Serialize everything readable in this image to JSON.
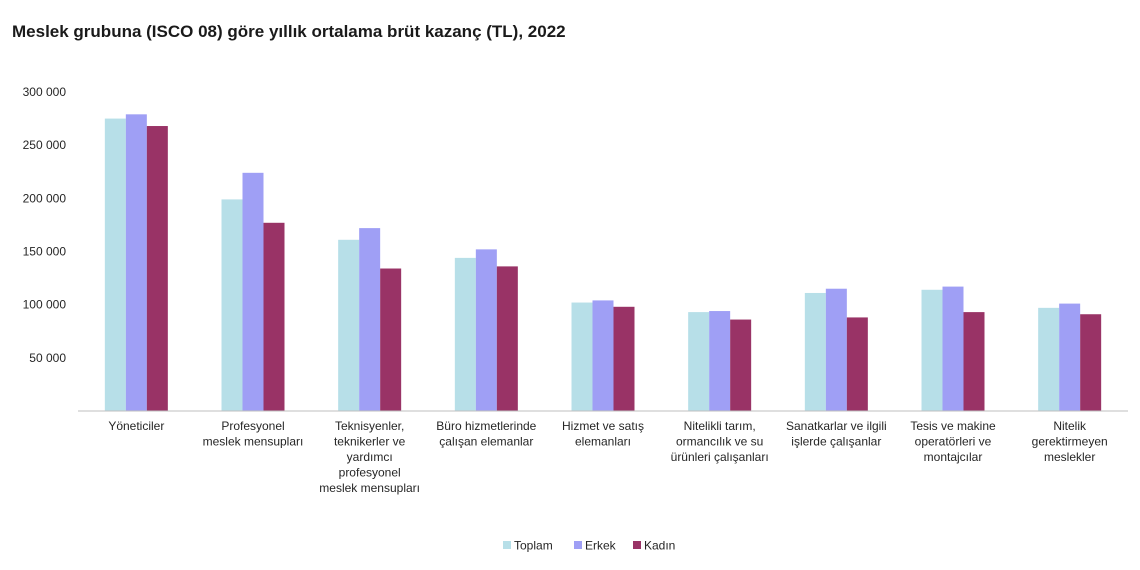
{
  "chart_data": {
    "type": "bar",
    "title": "Meslek grubuna (ISCO 08) göre yıllık ortalama brüt kazanç (TL), 2022",
    "xlabel": "",
    "ylabel": "",
    "ylim": [
      0,
      300000
    ],
    "yticks": [
      50000,
      100000,
      150000,
      200000,
      250000,
      300000
    ],
    "ytick_labels": [
      "50 000",
      "100 000",
      "150 000",
      "200 000",
      "250 000",
      "300 000"
    ],
    "grid": false,
    "legend_position": "bottom-center",
    "categories": [
      [
        "Yöneticiler"
      ],
      [
        "Profesyonel",
        "meslek mensupları"
      ],
      [
        "Teknisyenler,",
        "teknikerler ve",
        "yardımcı",
        "profesyonel",
        "meslek mensupları"
      ],
      [
        "Büro hizmetlerinde",
        "çalışan elemanlar"
      ],
      [
        "Hizmet ve satış",
        "elemanları"
      ],
      [
        "Nitelikli tarım,",
        "ormancılık ve su",
        "ürünleri çalışanları"
      ],
      [
        "Sanatkarlar ve ilgili",
        "işlerde çalışanlar"
      ],
      [
        "Tesis ve makine",
        "operatörleri ve",
        "montajcılar"
      ],
      [
        "Nitelik",
        "gerektirmeyen",
        "meslekler"
      ]
    ],
    "series": [
      {
        "name": "Toplam",
        "color": "#b7dfe8",
        "values": [
          275000,
          199000,
          161000,
          144000,
          102000,
          93000,
          111000,
          114000,
          97000
        ]
      },
      {
        "name": "Erkek",
        "color": "#9f9ff5",
        "values": [
          279000,
          224000,
          172000,
          152000,
          104000,
          94000,
          115000,
          117000,
          101000
        ]
      },
      {
        "name": "Kadın",
        "color": "#993366",
        "values": [
          268000,
          177000,
          134000,
          136000,
          98000,
          86000,
          88000,
          93000,
          91000
        ]
      }
    ]
  }
}
